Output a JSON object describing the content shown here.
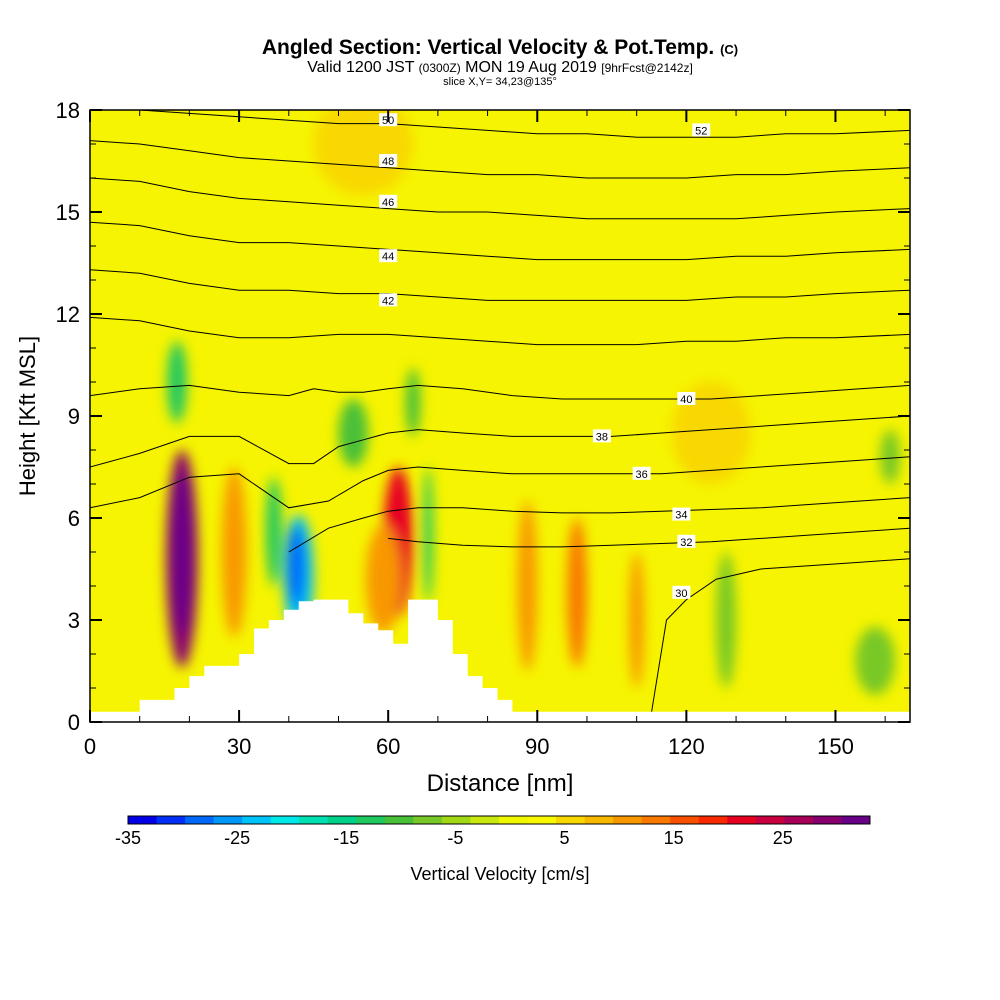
{
  "header": {
    "title": "Angled Section: Vertical Velocity & Pot.Temp.",
    "title_suffix": "(C)",
    "valid_prefix": "Valid 1200 JST",
    "valid_utc": "(0300Z)",
    "valid_date": "MON 19 Aug 2019",
    "forecast": "[9hrFcst@2142z]",
    "slice": "slice X,Y= 34,23@135°"
  },
  "chart_data": {
    "type": "heatmap",
    "xlabel": "Distance [nm]",
    "ylabel": "Height [Kft MSL]",
    "xlim": [
      0,
      165
    ],
    "ylim": [
      0,
      18
    ],
    "x_ticks": [
      0,
      30,
      60,
      90,
      120,
      150
    ],
    "y_ticks": [
      0,
      3,
      6,
      9,
      12,
      15,
      18
    ],
    "colorbar": {
      "label": "Vertical Velocity [cm/s]",
      "tick_labels": [
        "-35",
        "-25",
        "-15",
        "-5",
        "5",
        "15",
        "25"
      ],
      "tick_values": [
        -35,
        -25,
        -15,
        -5,
        5,
        15,
        25
      ],
      "range": [
        -35,
        33
      ],
      "colors": [
        "#0000e8",
        "#0030f8",
        "#0068f8",
        "#0098f8",
        "#00c4f8",
        "#00e8e8",
        "#00e0b0",
        "#00d088",
        "#20c860",
        "#48c038",
        "#78c828",
        "#a0d818",
        "#c8e810",
        "#f0f800",
        "#f8f800",
        "#f8d800",
        "#f8b800",
        "#f89800",
        "#f87800",
        "#f85000",
        "#f82800",
        "#e80020",
        "#c80040",
        "#a80058",
        "#880070",
        "#680088"
      ]
    },
    "terrain_profile": {
      "x": [
        0,
        10,
        10,
        17,
        17,
        20,
        20,
        23,
        23,
        30,
        30,
        33,
        33,
        36,
        36,
        39,
        39,
        42,
        42,
        45,
        45,
        52,
        52,
        55,
        55,
        58,
        58,
        61,
        61,
        64,
        64,
        67,
        67,
        70,
        70,
        73,
        73,
        76,
        76,
        79,
        79,
        82,
        82,
        85,
        85,
        165
      ],
      "y": [
        0.3,
        0.3,
        0.65,
        0.65,
        1.0,
        1.0,
        1.35,
        1.35,
        1.65,
        1.65,
        2.0,
        2.0,
        2.75,
        2.75,
        3.0,
        3.0,
        3.3,
        3.3,
        3.55,
        3.55,
        3.6,
        3.6,
        3.2,
        3.2,
        2.9,
        2.9,
        2.7,
        2.7,
        2.3,
        2.3,
        3.6,
        3.6,
        3.6,
        3.6,
        3.0,
        3.0,
        2.0,
        2.0,
        1.35,
        1.35,
        1.0,
        1.0,
        0.65,
        0.65,
        0.3,
        0.3
      ]
    },
    "velocity_features": [
      {
        "x": 18.5,
        "y": 4.8,
        "rx": 3.2,
        "ry": 3.2,
        "value": 30
      },
      {
        "x": 18.5,
        "y": 5.0,
        "rx": 1.8,
        "ry": 2.4,
        "value": 33
      },
      {
        "x": 29.0,
        "y": 5.0,
        "rx": 2.5,
        "ry": 2.5,
        "value": 12
      },
      {
        "x": 62.0,
        "y": 5.3,
        "rx": 3.0,
        "ry": 2.2,
        "value": 22
      },
      {
        "x": 59.0,
        "y": 4.2,
        "rx": 3.5,
        "ry": 1.6,
        "value": 12
      },
      {
        "x": 42.0,
        "y": 4.3,
        "rx": 3.0,
        "ry": 1.8,
        "value": -22
      },
      {
        "x": 41.5,
        "y": 4.6,
        "rx": 1.8,
        "ry": 1.2,
        "value": -28
      },
      {
        "x": 37.0,
        "y": 5.6,
        "rx": 1.6,
        "ry": 1.6,
        "value": -14
      },
      {
        "x": 68.0,
        "y": 5.5,
        "rx": 1.0,
        "ry": 2.0,
        "value": -12
      },
      {
        "x": 17.5,
        "y": 10.0,
        "rx": 2.0,
        "ry": 1.2,
        "value": -12
      },
      {
        "x": 53.0,
        "y": 8.5,
        "rx": 3.0,
        "ry": 1.0,
        "value": -9
      },
      {
        "x": 65.0,
        "y": 9.4,
        "rx": 1.5,
        "ry": 1.0,
        "value": -9
      },
      {
        "x": 88.0,
        "y": 4.0,
        "rx": 2.0,
        "ry": 2.5,
        "value": 12
      },
      {
        "x": 98.0,
        "y": 3.8,
        "rx": 2.0,
        "ry": 2.2,
        "value": 14
      },
      {
        "x": 110.0,
        "y": 3.0,
        "rx": 1.5,
        "ry": 2.0,
        "value": 10
      },
      {
        "x": 128.0,
        "y": 3.0,
        "rx": 2.0,
        "ry": 2.0,
        "value": -8
      },
      {
        "x": 158.0,
        "y": 1.8,
        "rx": 4.0,
        "ry": 1.0,
        "value": -7
      },
      {
        "x": 161.0,
        "y": 7.8,
        "rx": 2.0,
        "ry": 0.8,
        "value": -8
      },
      {
        "x": 55.0,
        "y": 17.0,
        "rx": 10.0,
        "ry": 1.5,
        "value": 6
      },
      {
        "x": 125.0,
        "y": 8.5,
        "rx": 8.0,
        "ry": 1.5,
        "value": 6
      }
    ],
    "isentropes": [
      {
        "label": "30",
        "label_x": 119,
        "label_y": 3.8,
        "x": [
          113,
          116,
          120,
          126,
          135,
          145,
          155,
          165
        ],
        "y": [
          0.3,
          3.0,
          3.6,
          4.2,
          4.5,
          4.6,
          4.7,
          4.8
        ]
      },
      {
        "label": "32",
        "label_x": 120,
        "label_y": 5.3,
        "x": [
          60,
          66,
          75,
          85,
          95,
          105,
          115,
          125,
          135,
          145,
          155,
          165
        ],
        "y": [
          5.4,
          5.3,
          5.2,
          5.15,
          5.15,
          5.2,
          5.25,
          5.3,
          5.4,
          5.5,
          5.6,
          5.7
        ]
      },
      {
        "label": "34",
        "label_x": 119,
        "label_y": 6.1,
        "x": [
          40,
          48,
          55,
          60,
          66,
          75,
          85,
          95,
          105,
          115,
          125,
          135,
          145,
          155,
          165
        ],
        "y": [
          5.0,
          5.7,
          6.0,
          6.2,
          6.3,
          6.3,
          6.2,
          6.15,
          6.15,
          6.2,
          6.25,
          6.3,
          6.4,
          6.5,
          6.6
        ]
      },
      {
        "label": "36",
        "label_x": 111,
        "label_y": 7.3,
        "x": [
          0,
          10,
          20,
          30,
          40,
          48,
          55,
          60,
          66,
          75,
          85,
          95,
          105,
          115,
          125,
          135,
          145,
          155,
          165
        ],
        "y": [
          6.3,
          6.6,
          7.2,
          7.3,
          6.3,
          6.5,
          7.1,
          7.4,
          7.5,
          7.4,
          7.3,
          7.3,
          7.3,
          7.3,
          7.4,
          7.5,
          7.6,
          7.7,
          7.8
        ]
      },
      {
        "label": "38",
        "label_x": 103,
        "label_y": 8.4,
        "x": [
          0,
          10,
          20,
          30,
          40,
          45,
          50,
          55,
          60,
          66,
          75,
          85,
          95,
          105,
          115,
          125,
          135,
          145,
          155,
          165
        ],
        "y": [
          7.5,
          7.9,
          8.4,
          8.4,
          7.6,
          7.6,
          8.1,
          8.3,
          8.5,
          8.6,
          8.5,
          8.4,
          8.4,
          8.4,
          8.5,
          8.6,
          8.7,
          8.8,
          8.9,
          9.0
        ]
      },
      {
        "label": "40",
        "label_x": 120,
        "label_y": 9.5,
        "x": [
          0,
          10,
          20,
          30,
          40,
          45,
          50,
          55,
          60,
          66,
          75,
          85,
          95,
          105,
          115,
          125,
          135,
          145,
          155,
          165
        ],
        "y": [
          9.6,
          9.8,
          9.9,
          9.7,
          9.6,
          9.8,
          9.7,
          9.7,
          9.8,
          9.9,
          9.8,
          9.6,
          9.5,
          9.5,
          9.5,
          9.5,
          9.6,
          9.7,
          9.8,
          9.9
        ]
      },
      {
        "label": "42",
        "label_x": 60,
        "label_y": 12.4,
        "x": [
          0,
          10,
          20,
          30,
          40,
          50,
          60,
          70,
          80,
          90,
          100,
          110,
          120,
          130,
          140,
          150,
          165
        ],
        "y": [
          11.9,
          11.8,
          11.5,
          11.3,
          11.3,
          11.4,
          11.4,
          11.3,
          11.2,
          11.1,
          11.1,
          11.1,
          11.2,
          11.2,
          11.3,
          11.3,
          11.4
        ]
      },
      {
        "label": "44",
        "label_x": 60,
        "label_y": 13.7,
        "x": [
          0,
          10,
          20,
          30,
          40,
          50,
          60,
          70,
          80,
          90,
          100,
          110,
          120,
          130,
          140,
          150,
          165
        ],
        "y": [
          13.3,
          13.2,
          12.9,
          12.7,
          12.7,
          12.6,
          12.6,
          12.5,
          12.4,
          12.4,
          12.4,
          12.4,
          12.4,
          12.5,
          12.5,
          12.6,
          12.7
        ]
      },
      {
        "label": "46",
        "label_x": 60,
        "label_y": 15.3,
        "x": [
          0,
          10,
          20,
          30,
          40,
          50,
          60,
          70,
          80,
          90,
          100,
          110,
          120,
          130,
          140,
          150,
          165
        ],
        "y": [
          14.7,
          14.6,
          14.3,
          14.1,
          14.1,
          14.0,
          13.9,
          13.8,
          13.7,
          13.6,
          13.6,
          13.6,
          13.6,
          13.7,
          13.7,
          13.8,
          13.9
        ]
      },
      {
        "label": "48",
        "label_x": 60,
        "label_y": 16.5,
        "x": [
          0,
          10,
          20,
          30,
          40,
          50,
          60,
          70,
          80,
          90,
          100,
          110,
          120,
          130,
          140,
          150,
          165
        ],
        "y": [
          16.0,
          15.9,
          15.6,
          15.4,
          15.3,
          15.2,
          15.1,
          15.0,
          15.0,
          14.9,
          14.8,
          14.8,
          14.8,
          14.8,
          14.9,
          15.0,
          15.1
        ]
      },
      {
        "label": "50",
        "label_x": 60,
        "label_y": 17.7,
        "x": [
          0,
          10,
          20,
          30,
          40,
          50,
          60,
          70,
          80,
          90,
          100,
          110,
          120,
          130,
          140,
          150,
          165
        ],
        "y": [
          17.1,
          17.0,
          16.8,
          16.6,
          16.5,
          16.4,
          16.3,
          16.2,
          16.1,
          16.1,
          16.0,
          16.0,
          16.0,
          16.1,
          16.1,
          16.2,
          16.3
        ]
      },
      {
        "label": "52",
        "label_x": 123,
        "label_y": 17.4,
        "x": [
          0,
          10,
          20,
          30,
          40,
          50,
          60,
          70,
          80,
          90,
          100,
          110,
          120,
          130,
          140,
          150,
          165
        ],
        "y": [
          18.0,
          18.0,
          17.9,
          17.8,
          17.7,
          17.6,
          17.6,
          17.5,
          17.4,
          17.3,
          17.3,
          17.2,
          17.2,
          17.2,
          17.3,
          17.3,
          17.4
        ]
      }
    ]
  }
}
